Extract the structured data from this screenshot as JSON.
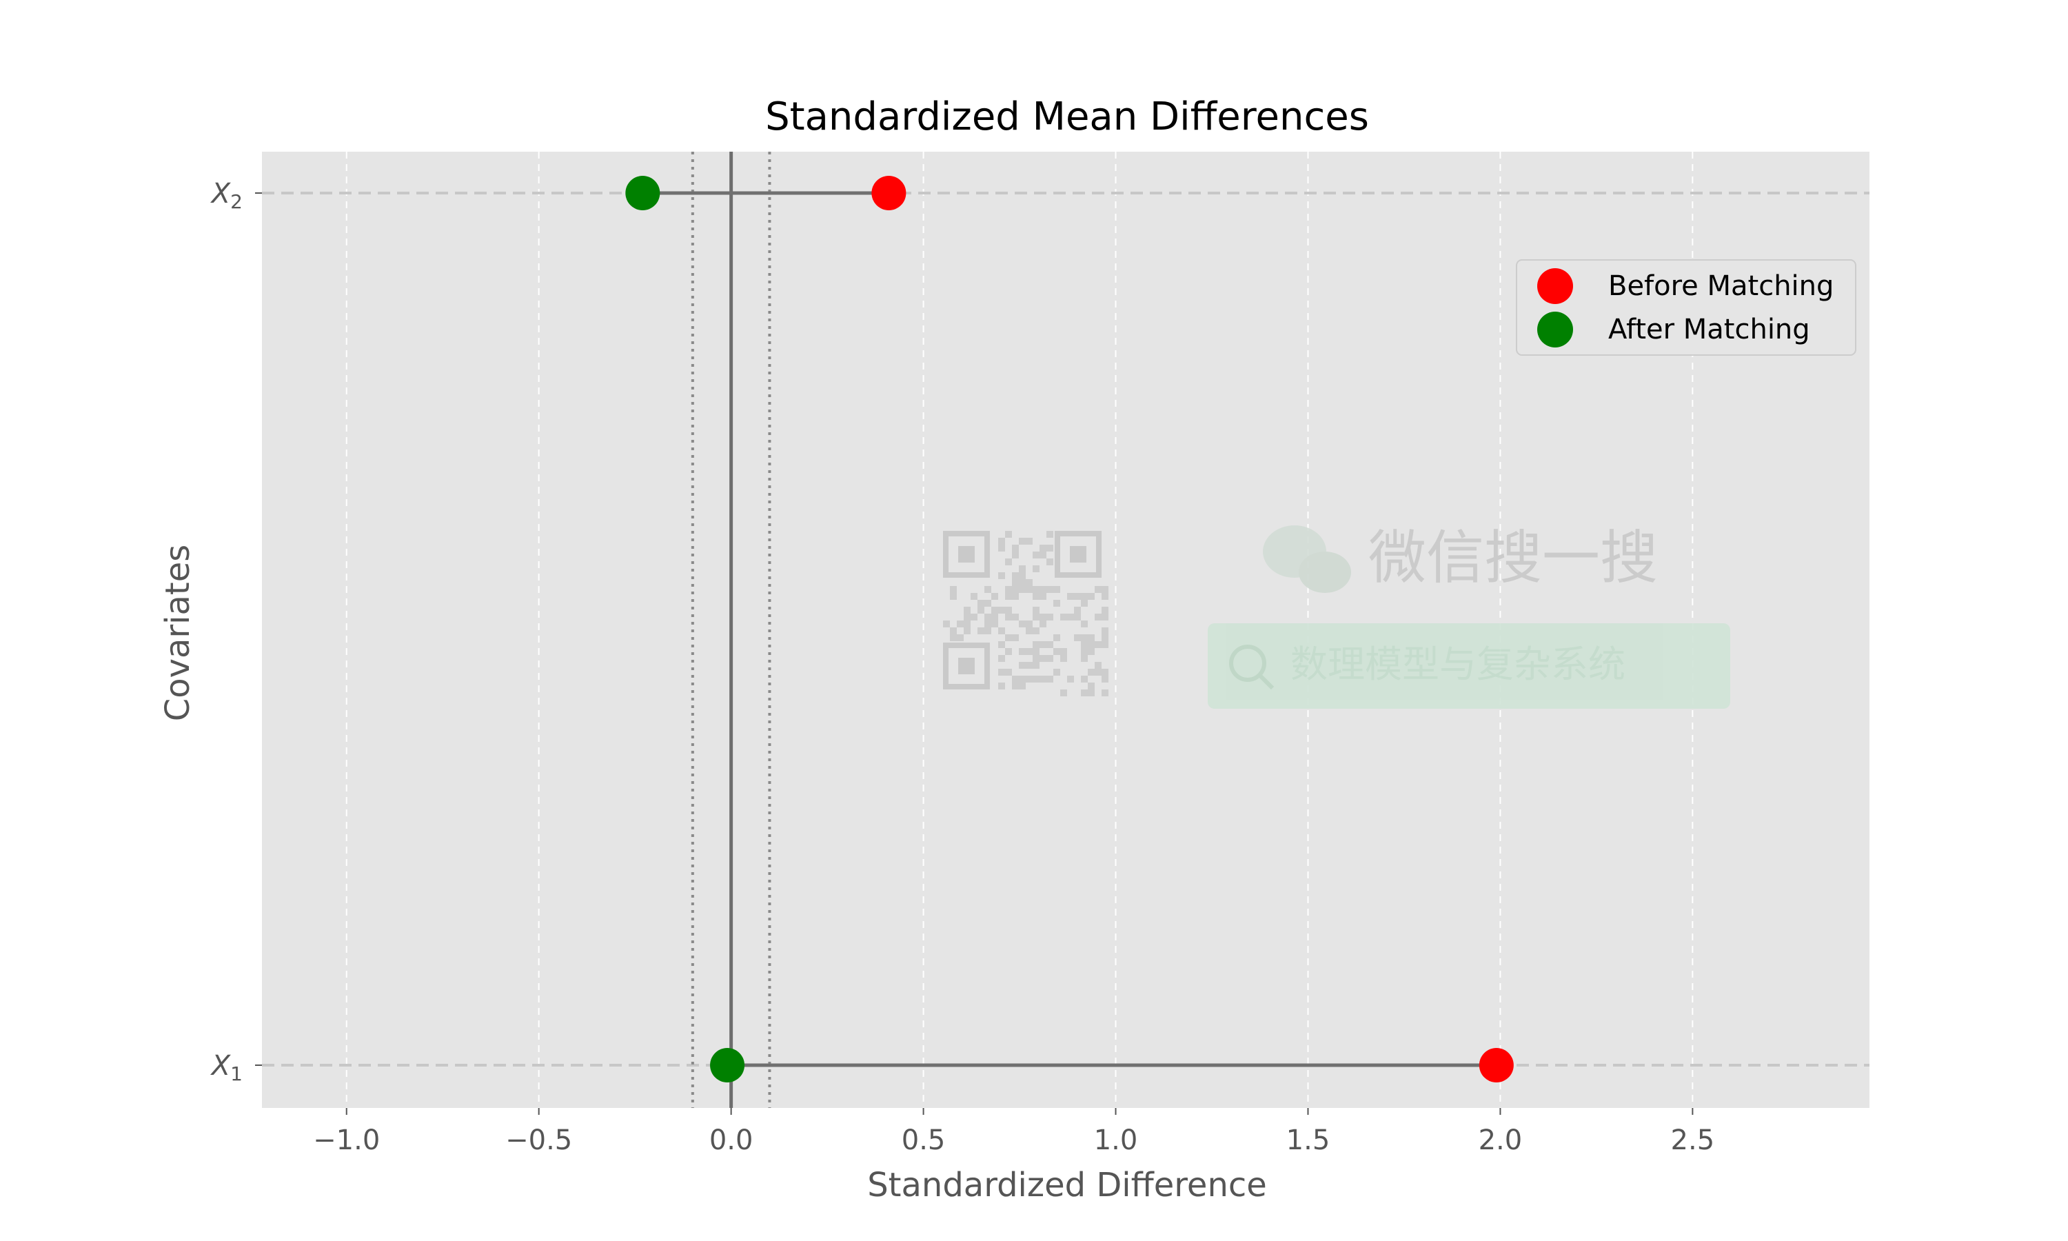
{
  "chart_data": {
    "type": "scatter",
    "title": "Standardized Mean Differences",
    "xlabel": "Standardized Difference",
    "ylabel": "Covariates",
    "xlim": [
      -1.22,
      2.96
    ],
    "x_ticks": [
      -1.0,
      -0.5,
      0.0,
      0.5,
      1.0,
      1.5,
      2.0,
      2.5
    ],
    "x_tick_labels": [
      "−1.0",
      "−0.5",
      "0.0",
      "0.5",
      "1.0",
      "1.5",
      "2.0",
      "2.5"
    ],
    "categories": [
      {
        "main": "X",
        "sub": "1"
      },
      {
        "main": "X",
        "sub": "2"
      }
    ],
    "series": [
      {
        "name": "Before Matching",
        "color": "#ff0000",
        "values": [
          1.99,
          0.41
        ]
      },
      {
        "name": "After Matching",
        "color": "#008000",
        "values": [
          -0.01,
          -0.23
        ]
      }
    ],
    "reference_lines": {
      "zero": 0.0,
      "thresholds": [
        -0.1,
        0.1
      ]
    },
    "grid": true,
    "legend_position": "upper-right"
  },
  "watermark": {
    "app_text": "微信搜一搜",
    "search_text": "数理模型与复杂系统"
  }
}
